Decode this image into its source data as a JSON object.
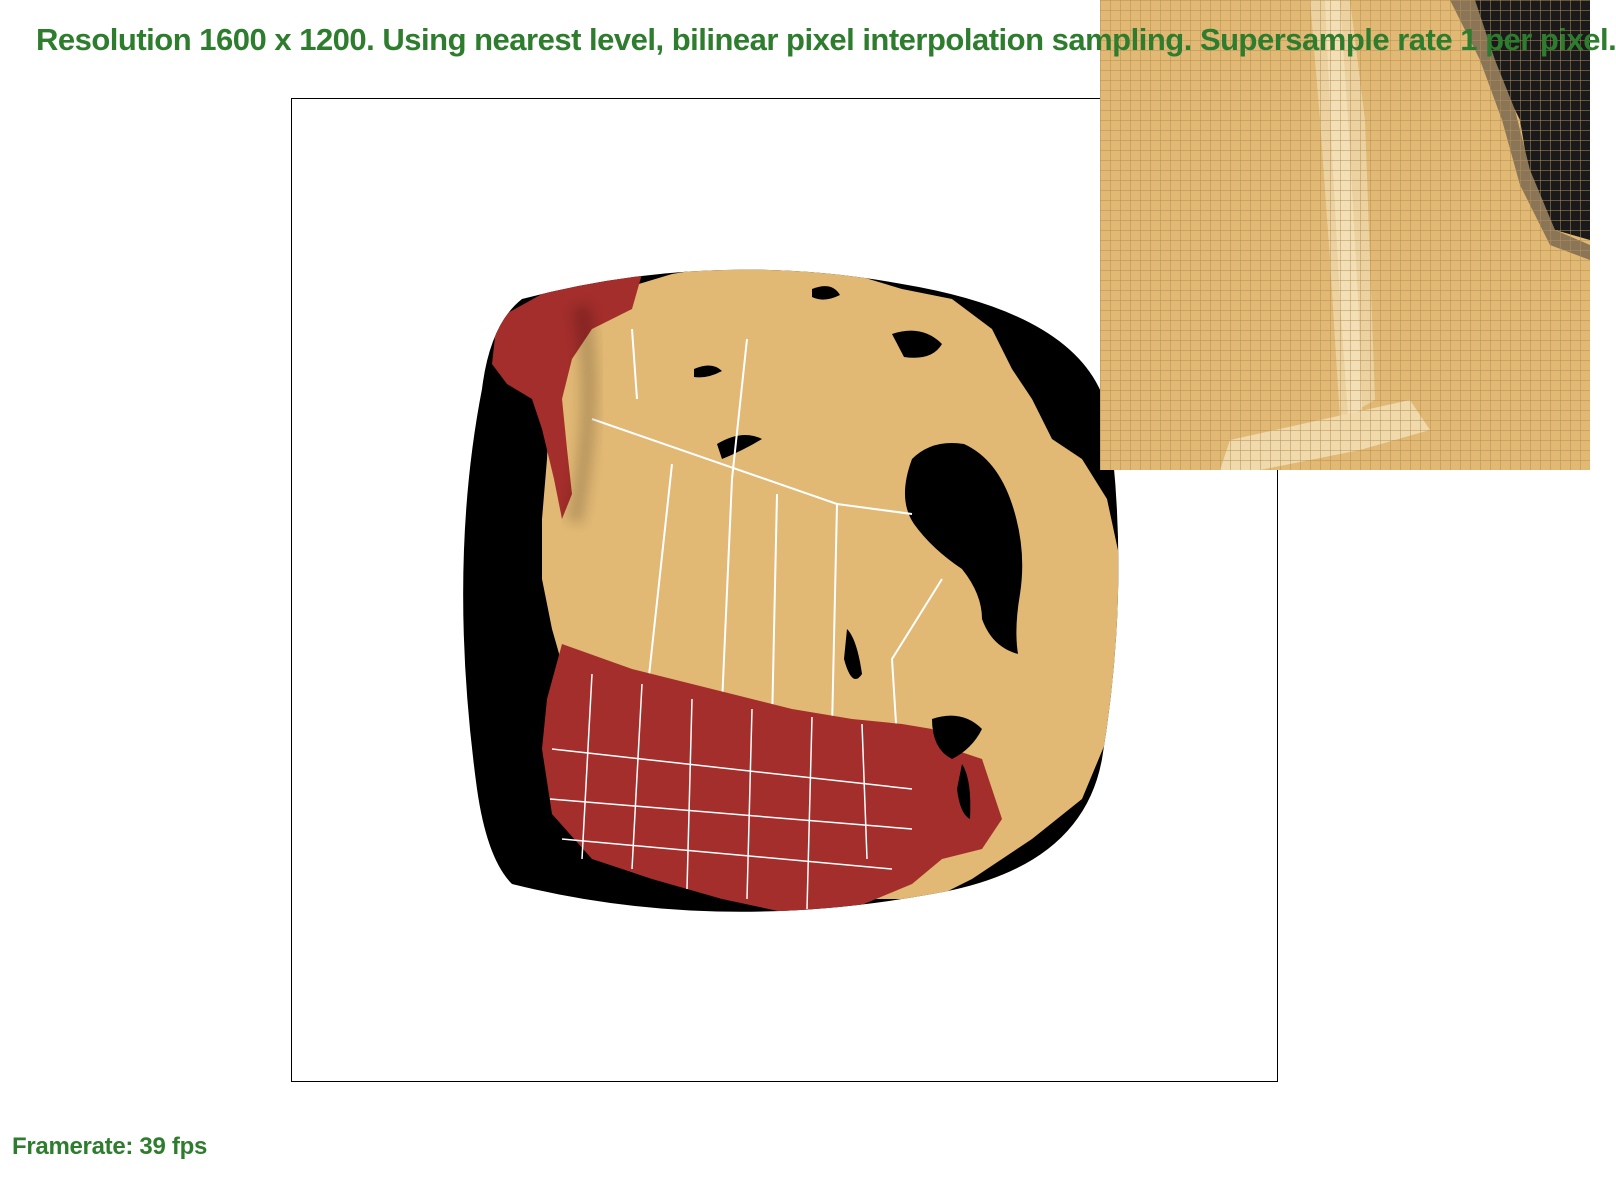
{
  "status": {
    "text": "Resolution 1600 x 1200. Using nearest level, bilinear pixel interpolation sampling. Supersample rate 1 per pixel."
  },
  "footer": {
    "framerate": "Framerate: 39 fps"
  },
  "colors": {
    "status_text": "#2e7d2e",
    "usa": "#a32e2b",
    "canada": "#e1b874",
    "ocean": "#000000",
    "border_lines": "#ffffff",
    "zoom_grid": "#b58f55",
    "zoom_light": "#f3dfb6"
  }
}
